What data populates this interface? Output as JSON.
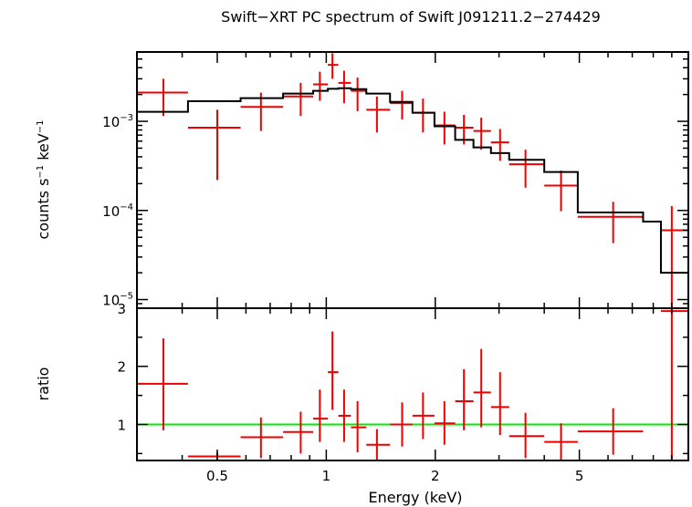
{
  "chart_data": [
    {
      "type": "scatter",
      "title": "Swift−XRT PC spectrum of Swift J091211.2−274429",
      "xlabel": "",
      "ylabel_parts": [
        "counts s",
        "−1",
        " keV",
        "−1"
      ],
      "xscale": "log",
      "yscale": "log",
      "xlim": [
        0.3,
        10
      ],
      "ylim": [
        8e-06,
        0.006
      ],
      "yticks": [
        {
          "value": 0.001,
          "base": "10",
          "exp": "−3"
        },
        {
          "value": 0.0001,
          "base": "10",
          "exp": "−4"
        },
        {
          "value": 1e-05,
          "base": "10",
          "exp": "−5"
        }
      ],
      "data_color": "#ee0000",
      "model_color": "#000000",
      "data": [
        {
          "x": 0.355,
          "xlo": 0.3,
          "xhi": 0.415,
          "y": 0.0021,
          "ylo": 0.00115,
          "yhi": 0.003
        },
        {
          "x": 0.5,
          "xlo": 0.415,
          "xhi": 0.58,
          "y": 0.00085,
          "ylo": 0.00022,
          "yhi": 0.00135
        },
        {
          "x": 0.66,
          "xlo": 0.58,
          "xhi": 0.76,
          "y": 0.00145,
          "ylo": 0.00078,
          "yhi": 0.0021
        },
        {
          "x": 0.85,
          "xlo": 0.76,
          "xhi": 0.92,
          "y": 0.0019,
          "ylo": 0.00115,
          "yhi": 0.0027
        },
        {
          "x": 0.96,
          "xlo": 0.92,
          "xhi": 1.01,
          "y": 0.0026,
          "ylo": 0.0017,
          "yhi": 0.0036
        },
        {
          "x": 1.04,
          "xlo": 1.01,
          "xhi": 1.08,
          "y": 0.0043,
          "ylo": 0.003,
          "yhi": 0.0058
        },
        {
          "x": 1.12,
          "xlo": 1.08,
          "xhi": 1.17,
          "y": 0.0027,
          "ylo": 0.0016,
          "yhi": 0.0037
        },
        {
          "x": 1.22,
          "xlo": 1.17,
          "xhi": 1.29,
          "y": 0.0022,
          "ylo": 0.0013,
          "yhi": 0.0031
        },
        {
          "x": 1.38,
          "xlo": 1.29,
          "xhi": 1.5,
          "y": 0.00135,
          "ylo": 0.00075,
          "yhi": 0.0019
        },
        {
          "x": 1.62,
          "xlo": 1.5,
          "xhi": 1.73,
          "y": 0.0016,
          "ylo": 0.00105,
          "yhi": 0.0022
        },
        {
          "x": 1.85,
          "xlo": 1.73,
          "xhi": 1.99,
          "y": 0.00125,
          "ylo": 0.00075,
          "yhi": 0.0018
        },
        {
          "x": 2.12,
          "xlo": 1.99,
          "xhi": 2.27,
          "y": 0.0009,
          "ylo": 0.00055,
          "yhi": 0.00128
        },
        {
          "x": 2.4,
          "xlo": 2.27,
          "xhi": 2.55,
          "y": 0.00085,
          "ylo": 0.00055,
          "yhi": 0.00118
        },
        {
          "x": 2.68,
          "xlo": 2.55,
          "xhi": 2.85,
          "y": 0.00078,
          "ylo": 0.00048,
          "yhi": 0.0011
        },
        {
          "x": 3.02,
          "xlo": 2.85,
          "xhi": 3.2,
          "y": 0.00058,
          "ylo": 0.00036,
          "yhi": 0.00082
        },
        {
          "x": 3.55,
          "xlo": 3.2,
          "xhi": 4.0,
          "y": 0.00033,
          "ylo": 0.00018,
          "yhi": 0.00048
        },
        {
          "x": 4.45,
          "xlo": 4.0,
          "xhi": 4.95,
          "y": 0.00019,
          "ylo": 9.8e-05,
          "yhi": 0.00028
        },
        {
          "x": 6.2,
          "xlo": 4.95,
          "xhi": 7.5,
          "y": 8.5e-05,
          "ylo": 4.3e-05,
          "yhi": 0.000125
        },
        {
          "x": 9.0,
          "xlo": 8.4,
          "xhi": 10.0,
          "y": 6e-05,
          "ylo": 8.2e-06,
          "yhi": 0.000112
        }
      ],
      "model": [
        {
          "xlo": 0.3,
          "xhi": 0.415,
          "y": 0.00128
        },
        {
          "xlo": 0.415,
          "xhi": 0.58,
          "y": 0.00168
        },
        {
          "xlo": 0.58,
          "xhi": 0.76,
          "y": 0.00182
        },
        {
          "xlo": 0.76,
          "xhi": 0.92,
          "y": 0.00205
        },
        {
          "xlo": 0.92,
          "xhi": 1.01,
          "y": 0.0022
        },
        {
          "xlo": 1.01,
          "xhi": 1.08,
          "y": 0.00232
        },
        {
          "xlo": 1.08,
          "xhi": 1.17,
          "y": 0.00235
        },
        {
          "xlo": 1.17,
          "xhi": 1.29,
          "y": 0.0023
        },
        {
          "xlo": 1.29,
          "xhi": 1.5,
          "y": 0.00205
        },
        {
          "xlo": 1.5,
          "xhi": 1.73,
          "y": 0.00165
        },
        {
          "xlo": 1.73,
          "xhi": 1.99,
          "y": 0.00125
        },
        {
          "xlo": 1.99,
          "xhi": 2.27,
          "y": 0.00088
        },
        {
          "xlo": 2.27,
          "xhi": 2.55,
          "y": 0.00062
        },
        {
          "xlo": 2.55,
          "xhi": 2.85,
          "y": 0.00051
        },
        {
          "xlo": 2.85,
          "xhi": 3.2,
          "y": 0.00044
        },
        {
          "xlo": 3.2,
          "xhi": 4.0,
          "y": 0.00037
        },
        {
          "xlo": 4.0,
          "xhi": 4.95,
          "y": 0.00027
        },
        {
          "xlo": 4.95,
          "xhi": 7.5,
          "y": 9.5e-05
        },
        {
          "xlo": 7.5,
          "xhi": 8.4,
          "y": 7.5e-05
        },
        {
          "xlo": 8.4,
          "xhi": 10.0,
          "y": 2e-05
        }
      ]
    },
    {
      "type": "scatter",
      "title": "",
      "xlabel": "Energy (keV)",
      "ylabel": "ratio",
      "xscale": "log",
      "xlim": [
        0.3,
        10
      ],
      "ylim": [
        0.38,
        3.0
      ],
      "xticks": [
        {
          "value": 0.5,
          "label": "0.5"
        },
        {
          "value": 1,
          "label": "1"
        },
        {
          "value": 2,
          "label": "2"
        },
        {
          "value": 5,
          "label": "5"
        }
      ],
      "yticks": [
        {
          "value": 1,
          "label": "1"
        },
        {
          "value": 2,
          "label": "2"
        },
        {
          "value": 3,
          "label": "3"
        }
      ],
      "reference_line": {
        "y": 1,
        "color": "#00ee00"
      },
      "data_color": "#ee0000",
      "data": [
        {
          "x": 0.355,
          "xlo": 0.3,
          "xhi": 0.415,
          "y": 1.7,
          "ylo": 0.9,
          "yhi": 2.48
        },
        {
          "x": 0.5,
          "xlo": 0.415,
          "xhi": 0.58,
          "y": 0.45,
          "ylo": 0.38,
          "yhi": 0.52
        },
        {
          "x": 0.66,
          "xlo": 0.58,
          "xhi": 0.76,
          "y": 0.78,
          "ylo": 0.42,
          "yhi": 1.12
        },
        {
          "x": 0.85,
          "xlo": 0.76,
          "xhi": 0.92,
          "y": 0.87,
          "ylo": 0.5,
          "yhi": 1.22
        },
        {
          "x": 0.96,
          "xlo": 0.92,
          "xhi": 1.01,
          "y": 1.1,
          "ylo": 0.7,
          "yhi": 1.6
        },
        {
          "x": 1.04,
          "xlo": 1.01,
          "xhi": 1.08,
          "y": 1.9,
          "ylo": 1.25,
          "yhi": 2.6
        },
        {
          "x": 1.12,
          "xlo": 1.08,
          "xhi": 1.17,
          "y": 1.15,
          "ylo": 0.7,
          "yhi": 1.6
        },
        {
          "x": 1.22,
          "xlo": 1.17,
          "xhi": 1.29,
          "y": 0.95,
          "ylo": 0.52,
          "yhi": 1.4
        },
        {
          "x": 1.38,
          "xlo": 1.29,
          "xhi": 1.5,
          "y": 0.65,
          "ylo": 0.38,
          "yhi": 0.92
        },
        {
          "x": 1.62,
          "xlo": 1.5,
          "xhi": 1.73,
          "y": 1.0,
          "ylo": 0.62,
          "yhi": 1.38
        },
        {
          "x": 1.85,
          "xlo": 1.73,
          "xhi": 1.99,
          "y": 1.15,
          "ylo": 0.75,
          "yhi": 1.55
        },
        {
          "x": 2.12,
          "xlo": 1.99,
          "xhi": 2.27,
          "y": 1.02,
          "ylo": 0.65,
          "yhi": 1.4
        },
        {
          "x": 2.4,
          "xlo": 2.27,
          "xhi": 2.55,
          "y": 1.4,
          "ylo": 0.9,
          "yhi": 1.95
        },
        {
          "x": 2.68,
          "xlo": 2.55,
          "xhi": 2.85,
          "y": 1.55,
          "ylo": 0.95,
          "yhi": 2.3
        },
        {
          "x": 3.02,
          "xlo": 2.85,
          "xhi": 3.2,
          "y": 1.3,
          "ylo": 0.82,
          "yhi": 1.9
        },
        {
          "x": 3.55,
          "xlo": 3.2,
          "xhi": 4.0,
          "y": 0.8,
          "ylo": 0.42,
          "yhi": 1.2
        },
        {
          "x": 4.45,
          "xlo": 4.0,
          "xhi": 4.95,
          "y": 0.7,
          "ylo": 0.38,
          "yhi": 1.02
        },
        {
          "x": 6.2,
          "xlo": 4.95,
          "xhi": 7.5,
          "y": 0.88,
          "ylo": 0.48,
          "yhi": 1.28
        },
        {
          "x": 9.0,
          "xlo": 8.4,
          "xhi": 10.0,
          "y": 2.95,
          "ylo": 0.38,
          "yhi": 3.0
        }
      ]
    }
  ]
}
